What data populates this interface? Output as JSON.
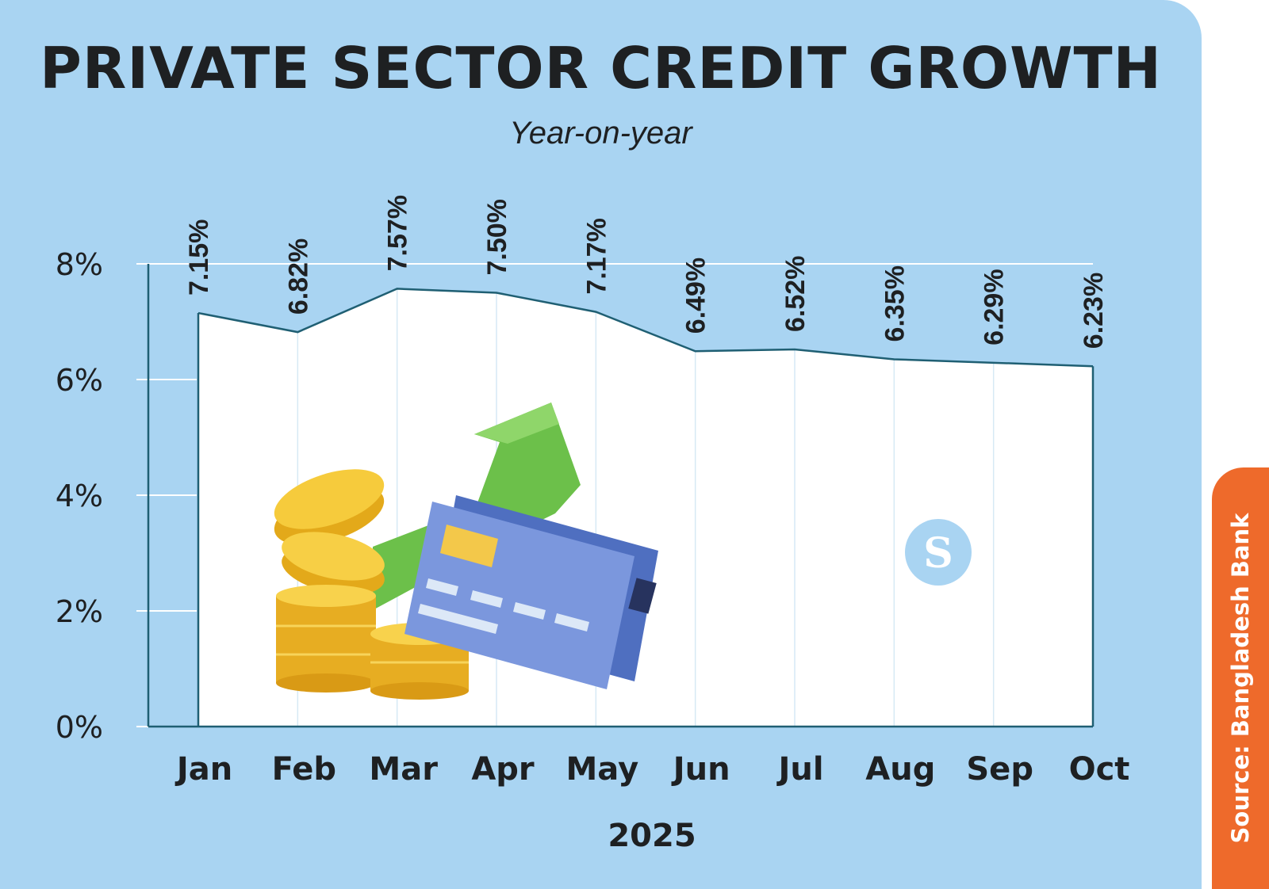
{
  "title": "PRIVATE SECTOR CREDIT GROWTH",
  "subtitle": "Year-on-year",
  "source": "Source: Bangladesh Bank",
  "logo_icon": "ds-logo-icon",
  "illustration": "coins-credit-card-up-arrow-illustration",
  "colors": {
    "background": "#a9d4f2",
    "plot_area": "#ffffff",
    "line": "#1f5f73",
    "text": "#1e2022",
    "source_tab": "#ee6a2b"
  },
  "chart_data": {
    "type": "area",
    "title": "PRIVATE SECTOR CREDIT GROWTH",
    "subtitle": "Year-on-year",
    "xlabel": "2025",
    "ylabel": "",
    "categories": [
      "Jan",
      "Feb",
      "Mar",
      "Apr",
      "May",
      "Jun",
      "Jul",
      "Aug",
      "Sep",
      "Oct"
    ],
    "values": [
      7.15,
      6.82,
      7.57,
      7.5,
      7.17,
      6.49,
      6.52,
      6.35,
      6.29,
      6.23
    ],
    "data_labels": [
      "7.15%",
      "6.82%",
      "7.57%",
      "7.50%",
      "7.17%",
      "6.49%",
      "6.52%",
      "6.35%",
      "6.29%",
      "6.23%"
    ],
    "yticks": [
      0,
      2,
      4,
      6,
      8
    ],
    "ytick_labels": [
      "0%",
      "2%",
      "4%",
      "6%",
      "8%"
    ],
    "ylim": [
      0,
      8
    ],
    "grid": false,
    "legend": "none"
  }
}
